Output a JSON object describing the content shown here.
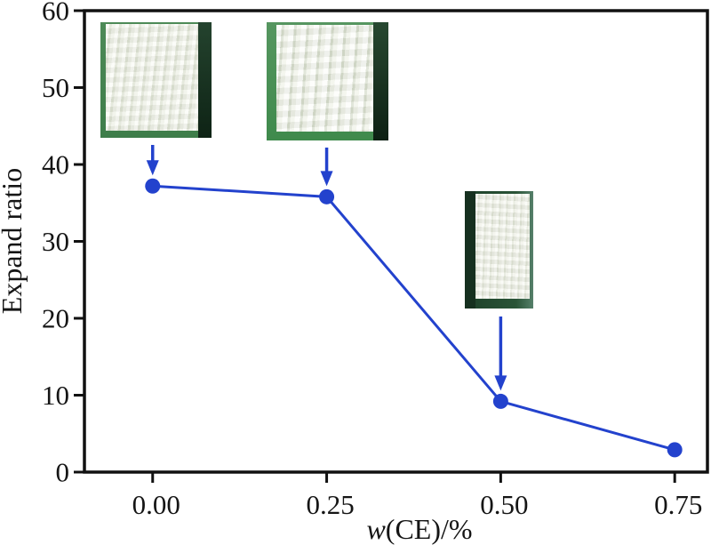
{
  "chart_data": {
    "type": "line",
    "title": "",
    "xlabel": "w(CE)/%",
    "xlabel_italic_part": "w",
    "xlabel_regular_part": "(CE)/%",
    "ylabel": "Expand ratio",
    "x": [
      0.0,
      0.25,
      0.5,
      0.75
    ],
    "y": [
      37.2,
      35.8,
      9.2,
      2.9
    ],
    "xtick_values": [
      0.0,
      0.25,
      0.5,
      0.75
    ],
    "xtick_labels": [
      "0.00",
      "0.25",
      "0.50",
      "0.75"
    ],
    "ytick_values": [
      0,
      10,
      20,
      30,
      40,
      50,
      60
    ],
    "ytick_labels": [
      "0",
      "10",
      "20",
      "30",
      "40",
      "50",
      "60"
    ],
    "xlim": [
      -0.098,
      0.797
    ],
    "ylim": [
      0,
      60
    ],
    "grid": false,
    "legend": null,
    "line_color": "#2342cd",
    "marker_color": "#2342cd",
    "marker": "circle",
    "axis_color": "#111111",
    "annotations": [
      {
        "type": "arrow-to-point",
        "target_x": 0.0,
        "description": "foam sample photo at w(CE)=0.00%"
      },
      {
        "type": "arrow-to-point",
        "target_x": 0.25,
        "description": "foam sample photo at w(CE)=0.25%"
      },
      {
        "type": "arrow-to-point",
        "target_x": 0.5,
        "description": "foam sample photo at w(CE)=0.50%"
      }
    ]
  }
}
